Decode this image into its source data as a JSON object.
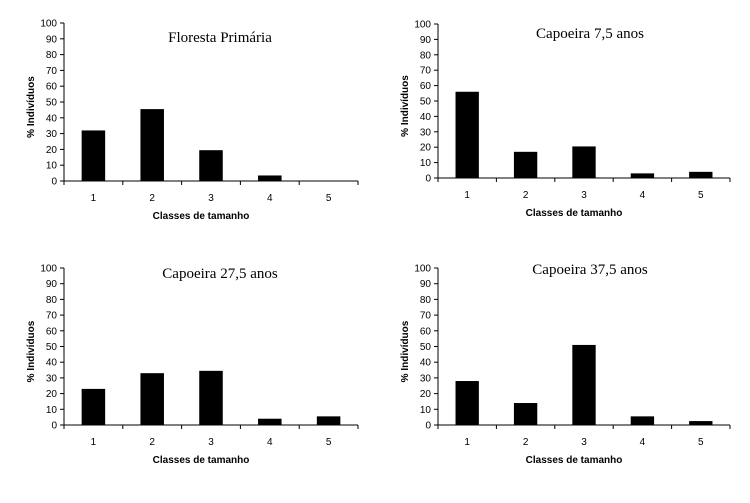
{
  "chart_data": [
    {
      "type": "bar",
      "title": "Floresta Primária",
      "xlabel": "Classes de tamanho",
      "ylabel": "% Indivíduos",
      "categories": [
        "1",
        "2",
        "3",
        "4",
        "5"
      ],
      "values": [
        32,
        45.5,
        19.5,
        3.5,
        0
      ],
      "ylim": [
        0,
        100
      ],
      "yticks": [
        "0",
        "10",
        "20",
        "30",
        "40",
        "50",
        "60",
        "70",
        "80",
        "90",
        "100"
      ],
      "bar_color": "#000000",
      "legend": "none",
      "grid": false
    },
    {
      "type": "bar",
      "title": "Capoeira 7,5 anos",
      "xlabel": "Classes de tamanho",
      "ylabel": "% Indivíduos",
      "categories": [
        "1",
        "2",
        "3",
        "4",
        "5"
      ],
      "values": [
        56,
        17,
        20.5,
        3,
        4
      ],
      "ylim": [
        0,
        100
      ],
      "yticks": [
        "0",
        "10",
        "20",
        "30",
        "40",
        "50",
        "60",
        "70",
        "80",
        "90",
        "100"
      ],
      "bar_color": "#000000",
      "legend": "none",
      "grid": false
    },
    {
      "type": "bar",
      "title": "Capoeira 27,5 anos",
      "xlabel": "Classes de tamanho",
      "ylabel": "% Indivíduos",
      "categories": [
        "1",
        "2",
        "3",
        "4",
        "5"
      ],
      "values": [
        23,
        33,
        34.5,
        4,
        5.5
      ],
      "ylim": [
        0,
        100
      ],
      "yticks": [
        "0",
        "10",
        "20",
        "30",
        "40",
        "50",
        "60",
        "70",
        "80",
        "90",
        "100"
      ],
      "bar_color": "#000000",
      "legend": "none",
      "grid": false
    },
    {
      "type": "bar",
      "title": "Capoeira 37,5 anos",
      "xlabel": "Classes de tamanho",
      "ylabel": "% Indivíduos",
      "categories": [
        "1",
        "2",
        "3",
        "4",
        "5"
      ],
      "values": [
        28,
        14,
        51,
        5.5,
        2.5
      ],
      "ylim": [
        0,
        100
      ],
      "yticks": [
        "0",
        "10",
        "20",
        "30",
        "40",
        "50",
        "60",
        "70",
        "80",
        "90",
        "100"
      ],
      "bar_color": "#000000",
      "legend": "none",
      "grid": false
    }
  ]
}
